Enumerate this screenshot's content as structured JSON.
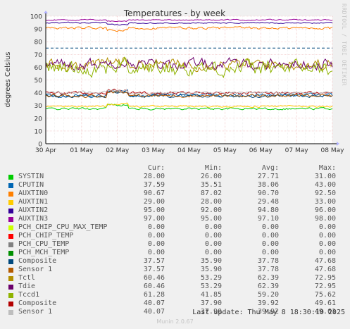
{
  "chart_data": {
    "type": "line",
    "title": "Temperatures - by week",
    "ylabel": "degrees Celsius",
    "xlabel": "",
    "ylim": [
      0,
      100
    ],
    "yticks": [
      0,
      10,
      20,
      30,
      40,
      50,
      60,
      70,
      80,
      90,
      100
    ],
    "xticks": [
      "30 Apr",
      "01 May",
      "02 May",
      "03 May",
      "04 May",
      "05 May",
      "06 May",
      "07 May",
      "08 May"
    ],
    "grid": true,
    "warning_line": 75,
    "series": [
      {
        "name": "SYSTIN",
        "color": "#00cc00",
        "cur": "28.00",
        "min": "26.00",
        "avg": "27.71",
        "max": "31.00",
        "base": 27.5,
        "noise": 0.7,
        "bump": 3
      },
      {
        "name": "CPUTIN",
        "color": "#0066b3",
        "cur": "37.59",
        "min": "35.51",
        "avg": "38.06",
        "max": "43.00",
        "base": 38.0,
        "noise": 1.2,
        "bump": 3
      },
      {
        "name": "AUXTIN0",
        "color": "#ff8000",
        "cur": "90.67",
        "min": "87.02",
        "avg": "90.70",
        "max": "92.50",
        "base": 90.7,
        "noise": 0.8,
        "bump": -2
      },
      {
        "name": "AUXTIN1",
        "color": "#ffcc00",
        "cur": "29.00",
        "min": "28.00",
        "avg": "29.48",
        "max": "33.00",
        "base": 29.3,
        "noise": 0.6,
        "bump": 2
      },
      {
        "name": "AUXTIN2",
        "color": "#330099",
        "cur": "95.00",
        "min": "92.00",
        "avg": "94.80",
        "max": "96.00",
        "base": 94.8,
        "noise": 0.4,
        "bump": -1.5
      },
      {
        "name": "AUXTIN3",
        "color": "#990099",
        "cur": "97.00",
        "min": "95.00",
        "avg": "97.10",
        "max": "98.00",
        "base": 97.1,
        "noise": 0.4,
        "bump": -1
      },
      {
        "name": "PCH_CHIP_CPU_MAX_TEMP",
        "color": "#ccff00",
        "cur": "0.00",
        "min": "0.00",
        "avg": "0.00",
        "max": "0.00",
        "base": 0,
        "noise": 0,
        "bump": 0
      },
      {
        "name": "PCH_CHIP_TEMP",
        "color": "#ff0000",
        "cur": "0.00",
        "min": "0.00",
        "avg": "0.00",
        "max": "0.00",
        "base": 0,
        "noise": 0,
        "bump": 0
      },
      {
        "name": "PCH_CPU_TEMP",
        "color": "#808080",
        "cur": "0.00",
        "min": "0.00",
        "avg": "0.00",
        "max": "0.00",
        "base": 0,
        "noise": 0,
        "bump": 0
      },
      {
        "name": "PCH_MCH_TEMP",
        "color": "#008f00",
        "cur": "0.00",
        "min": "0.00",
        "avg": "0.00",
        "max": "0.00",
        "base": 0,
        "noise": 0,
        "bump": 0
      },
      {
        "name": "Composite",
        "color": "#00487d",
        "cur": "37.57",
        "min": "35.90",
        "avg": "37.78",
        "max": "47.68",
        "base": 37.5,
        "noise": 1.0,
        "bump": 3
      },
      {
        "name": "Sensor 1",
        "color": "#b35a00",
        "cur": "37.57",
        "min": "35.90",
        "avg": "37.78",
        "max": "47.68",
        "base": 37.6,
        "noise": 1.0,
        "bump": 3
      },
      {
        "name": "Tctl",
        "color": "#b38f00",
        "cur": "60.46",
        "min": "53.29",
        "avg": "62.39",
        "max": "72.95",
        "base": 62.4,
        "noise": 3.5,
        "bump": 2
      },
      {
        "name": "Tdie",
        "color": "#6b006b",
        "cur": "60.46",
        "min": "53.29",
        "avg": "62.39",
        "max": "72.95",
        "base": 62.4,
        "noise": 3.5,
        "bump": 2
      },
      {
        "name": "Tccd1",
        "color": "#8fb300",
        "cur": "61.28",
        "min": "41.85",
        "avg": "59.20",
        "max": "75.62",
        "base": 59.2,
        "noise": 5.0,
        "bump": 2
      },
      {
        "name": "Composite",
        "color": "#b30000",
        "cur": "40.07",
        "min": "37.90",
        "avg": "39.92",
        "max": "49.61",
        "base": 39.9,
        "noise": 0.9,
        "bump": 2
      },
      {
        "name": "Sensor 1",
        "color": "#bebebe",
        "cur": "40.07",
        "min": "37.90",
        "avg": "39.92",
        "max": "49.61",
        "base": 40.0,
        "noise": 0.9,
        "bump": 2
      }
    ]
  },
  "legend_headers": {
    "cur": "Cur:",
    "min": "Min:",
    "avg": "Avg:",
    "max": "Max:"
  },
  "side_label": "RRDTOOL / TOBI OETIKER",
  "last_update": "Last update: Thu May  8 18:30:10 2025",
  "munin_version": "Munin 2.0.67"
}
